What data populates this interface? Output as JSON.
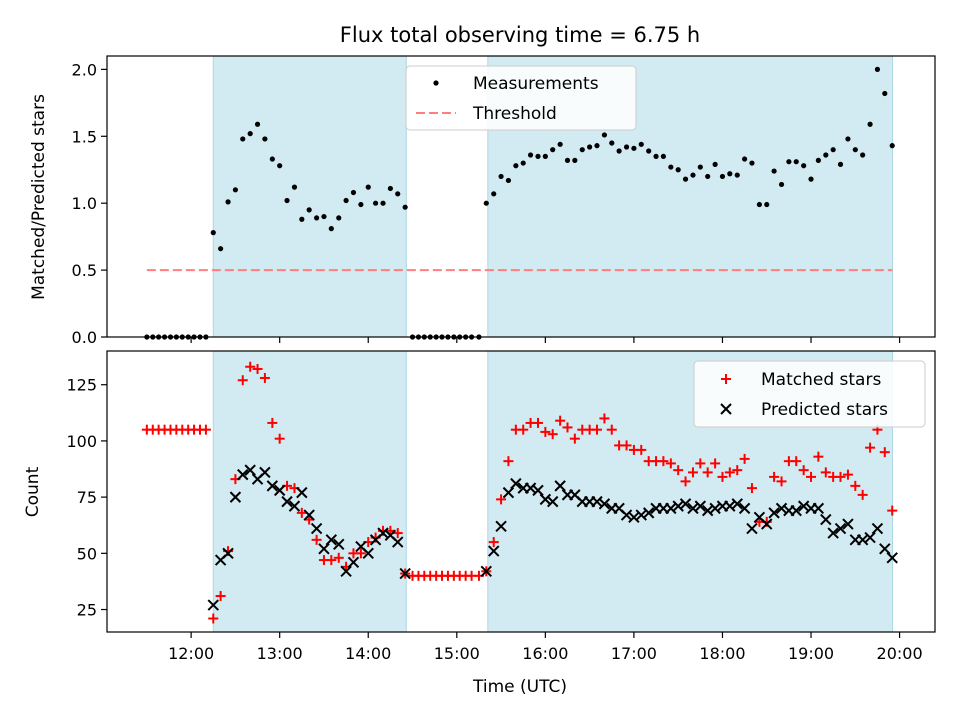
{
  "title": "Flux total observing time = 6.75 h",
  "colors": {
    "observing_band": "#add8e6",
    "measurements": "#000000",
    "threshold": "#ff7f7f",
    "matched": "#ff0000",
    "predicted": "#000000"
  },
  "chart_data": [
    {
      "type": "scatter",
      "ylabel": "Matched/Predicted stars",
      "xlim": [
        11.05,
        20.4
      ],
      "ylim": [
        0,
        2.1
      ],
      "yticks": [
        0.0,
        0.5,
        1.0,
        1.5,
        2.0
      ],
      "ytick_labels": [
        "0.0",
        "0.5",
        "1.0",
        "1.5",
        "2.0"
      ],
      "xticks": [
        12,
        13,
        14,
        15,
        16,
        17,
        18,
        19,
        20
      ],
      "legend": {
        "placement": "upper center",
        "entries": [
          "Measurements",
          "Threshold"
        ]
      },
      "observing_windows": [
        [
          12.25,
          14.43
        ],
        [
          15.35,
          19.92
        ]
      ],
      "threshold": {
        "name": "Threshold",
        "y": 0.5,
        "x_range": [
          11.5,
          19.92
        ]
      },
      "series": [
        {
          "name": "Measurements",
          "marker": "dot",
          "x": [
            11.5,
            11.567,
            11.633,
            11.7,
            11.767,
            11.833,
            11.9,
            11.967,
            12.033,
            12.1,
            12.167,
            12.25,
            12.333,
            12.417,
            12.5,
            12.583,
            12.667,
            12.75,
            12.833,
            12.917,
            13.0,
            13.083,
            13.167,
            13.25,
            13.333,
            13.417,
            13.5,
            13.583,
            13.667,
            13.75,
            13.833,
            13.917,
            14.0,
            14.083,
            14.167,
            14.25,
            14.333,
            14.417,
            14.5,
            14.567,
            14.633,
            14.7,
            14.767,
            14.833,
            14.9,
            14.967,
            15.033,
            15.1,
            15.167,
            15.25,
            15.333,
            15.417,
            15.5,
            15.583,
            15.667,
            15.75,
            15.833,
            15.917,
            16.0,
            16.083,
            16.167,
            16.25,
            16.333,
            16.417,
            16.5,
            16.583,
            16.667,
            16.75,
            16.833,
            16.917,
            17.0,
            17.083,
            17.167,
            17.25,
            17.333,
            17.417,
            17.5,
            17.583,
            17.667,
            17.75,
            17.833,
            17.917,
            18.0,
            18.083,
            18.167,
            18.25,
            18.333,
            18.417,
            18.5,
            18.583,
            18.667,
            18.75,
            18.833,
            18.917,
            19.0,
            19.083,
            19.167,
            19.25,
            19.333,
            19.417,
            19.5,
            19.583,
            19.667,
            19.75,
            19.833,
            19.917
          ],
          "values": [
            0,
            0,
            0,
            0,
            0,
            0,
            0,
            0,
            0,
            0,
            0,
            0.78,
            0.66,
            1.01,
            1.1,
            1.48,
            1.52,
            1.59,
            1.48,
            1.33,
            1.28,
            1.02,
            1.12,
            0.88,
            0.95,
            0.89,
            0.9,
            0.81,
            0.89,
            1.02,
            1.08,
            0.99,
            1.12,
            1.0,
            1.0,
            1.11,
            1.07,
            0.97,
            0,
            0,
            0,
            0,
            0,
            0,
            0,
            0,
            0,
            0,
            0,
            0,
            1.0,
            1.07,
            1.2,
            1.17,
            1.28,
            1.3,
            1.36,
            1.35,
            1.35,
            1.4,
            1.44,
            1.32,
            1.32,
            1.4,
            1.42,
            1.43,
            1.51,
            1.45,
            1.39,
            1.42,
            1.41,
            1.44,
            1.39,
            1.35,
            1.35,
            1.27,
            1.25,
            1.18,
            1.21,
            1.27,
            1.2,
            1.29,
            1.2,
            1.22,
            1.21,
            1.33,
            1.3,
            0.99,
            0.99,
            1.24,
            1.14,
            1.31,
            1.31,
            1.28,
            1.18,
            1.32,
            1.36,
            1.4,
            1.29,
            1.48,
            1.4,
            1.36,
            1.59,
            2.0,
            1.82,
            1.43
          ]
        }
      ]
    },
    {
      "type": "scatter",
      "xlabel": "Time (UTC)",
      "ylabel": "Count",
      "xlim": [
        11.05,
        20.4
      ],
      "ylim": [
        15,
        140
      ],
      "yticks": [
        25,
        50,
        75,
        100,
        125
      ],
      "ytick_labels": [
        "25",
        "50",
        "75",
        "100",
        "125"
      ],
      "xticks": [
        12,
        13,
        14,
        15,
        16,
        17,
        18,
        19,
        20
      ],
      "xtick_labels": [
        "12:00",
        "13:00",
        "14:00",
        "15:00",
        "16:00",
        "17:00",
        "18:00",
        "19:00",
        "20:00"
      ],
      "legend": {
        "placement": "upper right",
        "entries": [
          "Matched stars",
          "Predicted stars"
        ]
      },
      "observing_windows": [
        [
          12.25,
          14.43
        ],
        [
          15.35,
          19.92
        ]
      ],
      "series": [
        {
          "name": "Matched stars",
          "marker": "plus",
          "x": [
            11.5,
            11.567,
            11.633,
            11.7,
            11.767,
            11.833,
            11.9,
            11.967,
            12.033,
            12.1,
            12.167,
            12.25,
            12.333,
            12.417,
            12.5,
            12.583,
            12.667,
            12.75,
            12.833,
            12.917,
            13.0,
            13.083,
            13.167,
            13.25,
            13.333,
            13.417,
            13.5,
            13.583,
            13.667,
            13.75,
            13.833,
            13.917,
            14.0,
            14.083,
            14.167,
            14.25,
            14.333,
            14.417,
            14.5,
            14.567,
            14.633,
            14.7,
            14.767,
            14.833,
            14.9,
            14.967,
            15.033,
            15.1,
            15.167,
            15.25,
            15.333,
            15.417,
            15.5,
            15.583,
            15.667,
            15.75,
            15.833,
            15.917,
            16.0,
            16.083,
            16.167,
            16.25,
            16.333,
            16.417,
            16.5,
            16.583,
            16.667,
            16.75,
            16.833,
            16.917,
            17.0,
            17.083,
            17.167,
            17.25,
            17.333,
            17.417,
            17.5,
            17.583,
            17.667,
            17.75,
            17.833,
            17.917,
            18.0,
            18.083,
            18.167,
            18.25,
            18.333,
            18.417,
            18.5,
            18.583,
            18.667,
            18.75,
            18.833,
            18.917,
            19.0,
            19.083,
            19.167,
            19.25,
            19.333,
            19.417,
            19.5,
            19.583,
            19.667,
            19.75,
            19.833,
            19.917
          ],
          "values": [
            105,
            105,
            105,
            105,
            105,
            105,
            105,
            105,
            105,
            105,
            105,
            21,
            31,
            51,
            83,
            127,
            133,
            132,
            128,
            108,
            101,
            80,
            79,
            68,
            65,
            56,
            47,
            47,
            48,
            44,
            50,
            50,
            55,
            57,
            60,
            60,
            59,
            41,
            40,
            40,
            40,
            40,
            40,
            40,
            40,
            40,
            40,
            40,
            40,
            40,
            42,
            55,
            74,
            91,
            105,
            105,
            108,
            108,
            104,
            103,
            109,
            106,
            101,
            105,
            105,
            105,
            110,
            105,
            98,
            98,
            96,
            96,
            91,
            91,
            91,
            90,
            87,
            82,
            86,
            90,
            86,
            90,
            84,
            86,
            87,
            92,
            79,
            64,
            64,
            84,
            82,
            91,
            91,
            87,
            84,
            93,
            86,
            84,
            84,
            85,
            80,
            76,
            97,
            105,
            95,
            69
          ]
        },
        {
          "name": "Predicted stars",
          "marker": "x",
          "x": [
            12.25,
            12.333,
            12.417,
            12.5,
            12.583,
            12.667,
            12.75,
            12.833,
            12.917,
            13.0,
            13.083,
            13.167,
            13.25,
            13.333,
            13.417,
            13.5,
            13.583,
            13.667,
            13.75,
            13.833,
            13.917,
            14.0,
            14.083,
            14.167,
            14.25,
            14.333,
            14.417,
            15.333,
            15.417,
            15.5,
            15.583,
            15.667,
            15.75,
            15.833,
            15.917,
            16.0,
            16.083,
            16.167,
            16.25,
            16.333,
            16.417,
            16.5,
            16.583,
            16.667,
            16.75,
            16.833,
            16.917,
            17.0,
            17.083,
            17.167,
            17.25,
            17.333,
            17.417,
            17.5,
            17.583,
            17.667,
            17.75,
            17.833,
            17.917,
            18.0,
            18.083,
            18.167,
            18.25,
            18.333,
            18.417,
            18.5,
            18.583,
            18.667,
            18.75,
            18.833,
            18.917,
            19.0,
            19.083,
            19.167,
            19.25,
            19.333,
            19.417,
            19.5,
            19.583,
            19.667,
            19.75,
            19.833,
            19.917
          ],
          "values": [
            27,
            47,
            50,
            75,
            85,
            87,
            83,
            86,
            80,
            78,
            73,
            71,
            77,
            67,
            61,
            52,
            56,
            54,
            42,
            46,
            53,
            50,
            56,
            59,
            58,
            55,
            41,
            42,
            51,
            62,
            77,
            81,
            79,
            79,
            78,
            74,
            73,
            80,
            76,
            76,
            73,
            73,
            73,
            72,
            70,
            70,
            67,
            66,
            67,
            68,
            70,
            70,
            70,
            71,
            72,
            70,
            71,
            69,
            70,
            71,
            71,
            72,
            70,
            61,
            66,
            63,
            68,
            70,
            69,
            69,
            71,
            70,
            70,
            65,
            59,
            61,
            63,
            56,
            56,
            57,
            61,
            52,
            48
          ]
        }
      ]
    }
  ]
}
